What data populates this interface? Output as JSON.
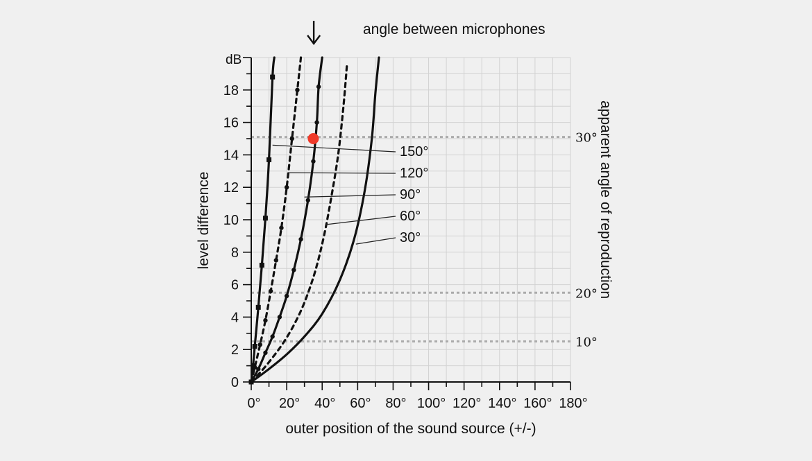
{
  "chart_data": {
    "type": "line",
    "title": "angle between microphones",
    "xlabel": "outer position of the sound source (+/-)",
    "ylabel": "level difference",
    "y2label": "apparent angle of reproduction",
    "y_unit": "dB",
    "xlim": [
      0,
      180
    ],
    "ylim": [
      0,
      20
    ],
    "grid": true,
    "x_ticks": [
      "0°",
      "20°",
      "40°",
      "60°",
      "80°",
      "100°",
      "120°",
      "140°",
      "160°",
      "180°"
    ],
    "y_ticks": [
      "0",
      "2",
      "4",
      "6",
      "8",
      "10",
      "12",
      "14",
      "16",
      "18"
    ],
    "series": [
      {
        "name": "150°",
        "style": "solid",
        "marker": "square",
        "points": [
          [
            0,
            0
          ],
          [
            1,
            1
          ],
          [
            2,
            2.2
          ],
          [
            4,
            4.6
          ],
          [
            6,
            7.2
          ],
          [
            8,
            10.1
          ],
          [
            10,
            13.7
          ],
          [
            12,
            18.8
          ],
          [
            13,
            20
          ]
        ]
      },
      {
        "name": "120°",
        "style": "dashed",
        "marker": "dot",
        "points": [
          [
            0,
            0
          ],
          [
            2,
            0.9
          ],
          [
            5,
            2.3
          ],
          [
            8,
            3.8
          ],
          [
            11,
            5.6
          ],
          [
            14,
            7.5
          ],
          [
            17,
            9.5
          ],
          [
            20,
            12
          ],
          [
            23,
            15
          ],
          [
            26,
            18
          ],
          [
            28,
            20
          ]
        ]
      },
      {
        "name": "90°",
        "style": "solid",
        "marker": "dot",
        "points": [
          [
            0,
            0
          ],
          [
            4,
            0.8
          ],
          [
            8,
            1.8
          ],
          [
            12,
            2.8
          ],
          [
            16,
            4
          ],
          [
            20,
            5.3
          ],
          [
            24,
            6.9
          ],
          [
            28,
            8.8
          ],
          [
            32,
            11.2
          ],
          [
            35,
            13.6
          ],
          [
            37,
            16
          ],
          [
            38,
            18.2
          ],
          [
            40,
            20
          ]
        ]
      },
      {
        "name": "60°",
        "style": "dashed",
        "marker": "none",
        "points": [
          [
            0,
            0
          ],
          [
            6,
            0.7
          ],
          [
            12,
            1.5
          ],
          [
            18,
            2.4
          ],
          [
            24,
            3.5
          ],
          [
            30,
            4.9
          ],
          [
            36,
            6.8
          ],
          [
            41,
            9
          ],
          [
            45,
            11.3
          ],
          [
            49,
            14
          ],
          [
            52,
            17
          ],
          [
            54,
            19.6
          ]
        ]
      },
      {
        "name": "30°",
        "style": "solid",
        "marker": "none",
        "points": [
          [
            0,
            0
          ],
          [
            10,
            0.8
          ],
          [
            20,
            1.7
          ],
          [
            30,
            2.8
          ],
          [
            40,
            4.2
          ],
          [
            50,
            6.3
          ],
          [
            58,
            8.8
          ],
          [
            64,
            11.8
          ],
          [
            68,
            15
          ],
          [
            70,
            17.8
          ],
          [
            72,
            20
          ]
        ]
      }
    ],
    "reference_lines": [
      {
        "label": "30°",
        "y": 15.1
      },
      {
        "label": "20°",
        "y": 5.5
      },
      {
        "label": "10°",
        "y": 2.5
      }
    ],
    "highlight_point": {
      "x": 35,
      "y": 15,
      "color": "#f03a2a"
    },
    "annotations": [
      {
        "text": "150°",
        "line_from": [
          12,
          14.6
        ]
      },
      {
        "text": "120°",
        "line_from": [
          21,
          12.9
        ]
      },
      {
        "text": "90°",
        "line_from": [
          30,
          11.4
        ]
      },
      {
        "text": "60°",
        "line_from": [
          42,
          9.7
        ]
      },
      {
        "text": "30°",
        "line_from": [
          59,
          8.5
        ]
      }
    ],
    "arrow_at_x": 38
  }
}
